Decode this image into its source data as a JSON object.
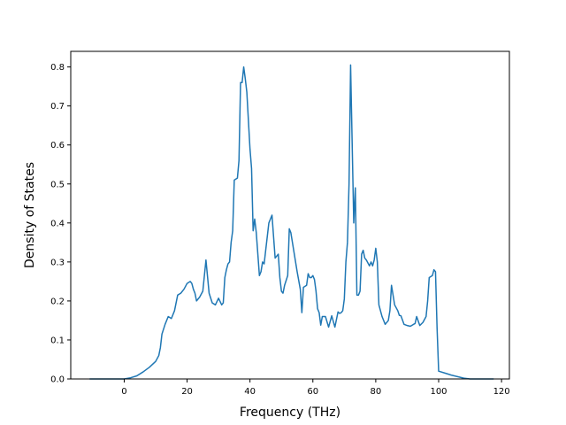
{
  "chart_data": {
    "type": "line",
    "title": "",
    "xlabel": "Frequency (THz)",
    "ylabel": "Density of States",
    "xlim": [
      -17,
      122.5
    ],
    "ylim": [
      0,
      0.84
    ],
    "xticks": [
      0,
      20,
      40,
      60,
      80,
      100,
      120
    ],
    "yticks": [
      0.0,
      0.1,
      0.2,
      0.3,
      0.4,
      0.5,
      0.6,
      0.7,
      0.8
    ],
    "ytick_labels": [
      "0.0",
      "0.1",
      "0.2",
      "0.3",
      "0.4",
      "0.5",
      "0.6",
      "0.7",
      "0.8"
    ],
    "grid": false,
    "legend": "none",
    "series": [
      {
        "color": "#1f77b4",
        "x": [
          -11,
          -5,
          0,
          2,
          4,
          6,
          8,
          10,
          11,
          11.5,
          12,
          13,
          14,
          15,
          16,
          17,
          18,
          19,
          20,
          21,
          21.5,
          22,
          22.5,
          23,
          24,
          25,
          26,
          27,
          28,
          29,
          30,
          31,
          31.5,
          32,
          32.5,
          33,
          33.5,
          34,
          34.5,
          35,
          36,
          36.5,
          37,
          37.5,
          38,
          38.5,
          39,
          40,
          40.5,
          41,
          41.5,
          42,
          43,
          43.5,
          44,
          44.5,
          45,
          46,
          47,
          48,
          49,
          49.5,
          50,
          50.5,
          51,
          52,
          52.5,
          53,
          54,
          55,
          56,
          56.5,
          57,
          58,
          58.5,
          59,
          59.5,
          60,
          60.5,
          61,
          61.5,
          62,
          62.5,
          63,
          64,
          65,
          66,
          67,
          68,
          68.5,
          69,
          69.5,
          70,
          70.5,
          71,
          71.5,
          72,
          73,
          73.5,
          74,
          74.5,
          75,
          75.5,
          76,
          76.5,
          77,
          78,
          78.5,
          79,
          79.5,
          80,
          80.5,
          81,
          82,
          83,
          84,
          84.5,
          85,
          86,
          87,
          87.5,
          88,
          89,
          90,
          91,
          92,
          92.5,
          93,
          94,
          95,
          96,
          96.5,
          97,
          98,
          98.5,
          99,
          99.5,
          100,
          102,
          104,
          106,
          108,
          110,
          112,
          114,
          116,
          117.5
        ],
        "y": [
          0,
          0,
          0,
          0.003,
          0.008,
          0.018,
          0.03,
          0.045,
          0.06,
          0.08,
          0.115,
          0.14,
          0.16,
          0.155,
          0.175,
          0.215,
          0.22,
          0.23,
          0.245,
          0.25,
          0.245,
          0.23,
          0.22,
          0.2,
          0.21,
          0.225,
          0.305,
          0.22,
          0.195,
          0.19,
          0.207,
          0.19,
          0.195,
          0.26,
          0.28,
          0.295,
          0.3,
          0.35,
          0.38,
          0.51,
          0.515,
          0.56,
          0.76,
          0.76,
          0.8,
          0.77,
          0.735,
          0.59,
          0.54,
          0.38,
          0.41,
          0.375,
          0.265,
          0.275,
          0.3,
          0.295,
          0.33,
          0.4,
          0.42,
          0.31,
          0.32,
          0.26,
          0.225,
          0.22,
          0.24,
          0.265,
          0.385,
          0.375,
          0.325,
          0.275,
          0.23,
          0.17,
          0.235,
          0.24,
          0.27,
          0.26,
          0.26,
          0.265,
          0.255,
          0.225,
          0.18,
          0.17,
          0.138,
          0.16,
          0.16,
          0.133,
          0.162,
          0.133,
          0.172,
          0.168,
          0.17,
          0.175,
          0.205,
          0.3,
          0.35,
          0.5,
          0.805,
          0.4,
          0.49,
          0.215,
          0.215,
          0.225,
          0.32,
          0.33,
          0.31,
          0.305,
          0.29,
          0.3,
          0.29,
          0.305,
          0.335,
          0.3,
          0.19,
          0.16,
          0.14,
          0.15,
          0.175,
          0.24,
          0.19,
          0.175,
          0.163,
          0.162,
          0.14,
          0.137,
          0.135,
          0.14,
          0.142,
          0.16,
          0.137,
          0.145,
          0.16,
          0.2,
          0.26,
          0.265,
          0.28,
          0.275,
          0.13,
          0.02,
          0.015,
          0.01,
          0.006,
          0.002,
          0,
          0,
          0,
          0,
          0
        ]
      }
    ]
  }
}
